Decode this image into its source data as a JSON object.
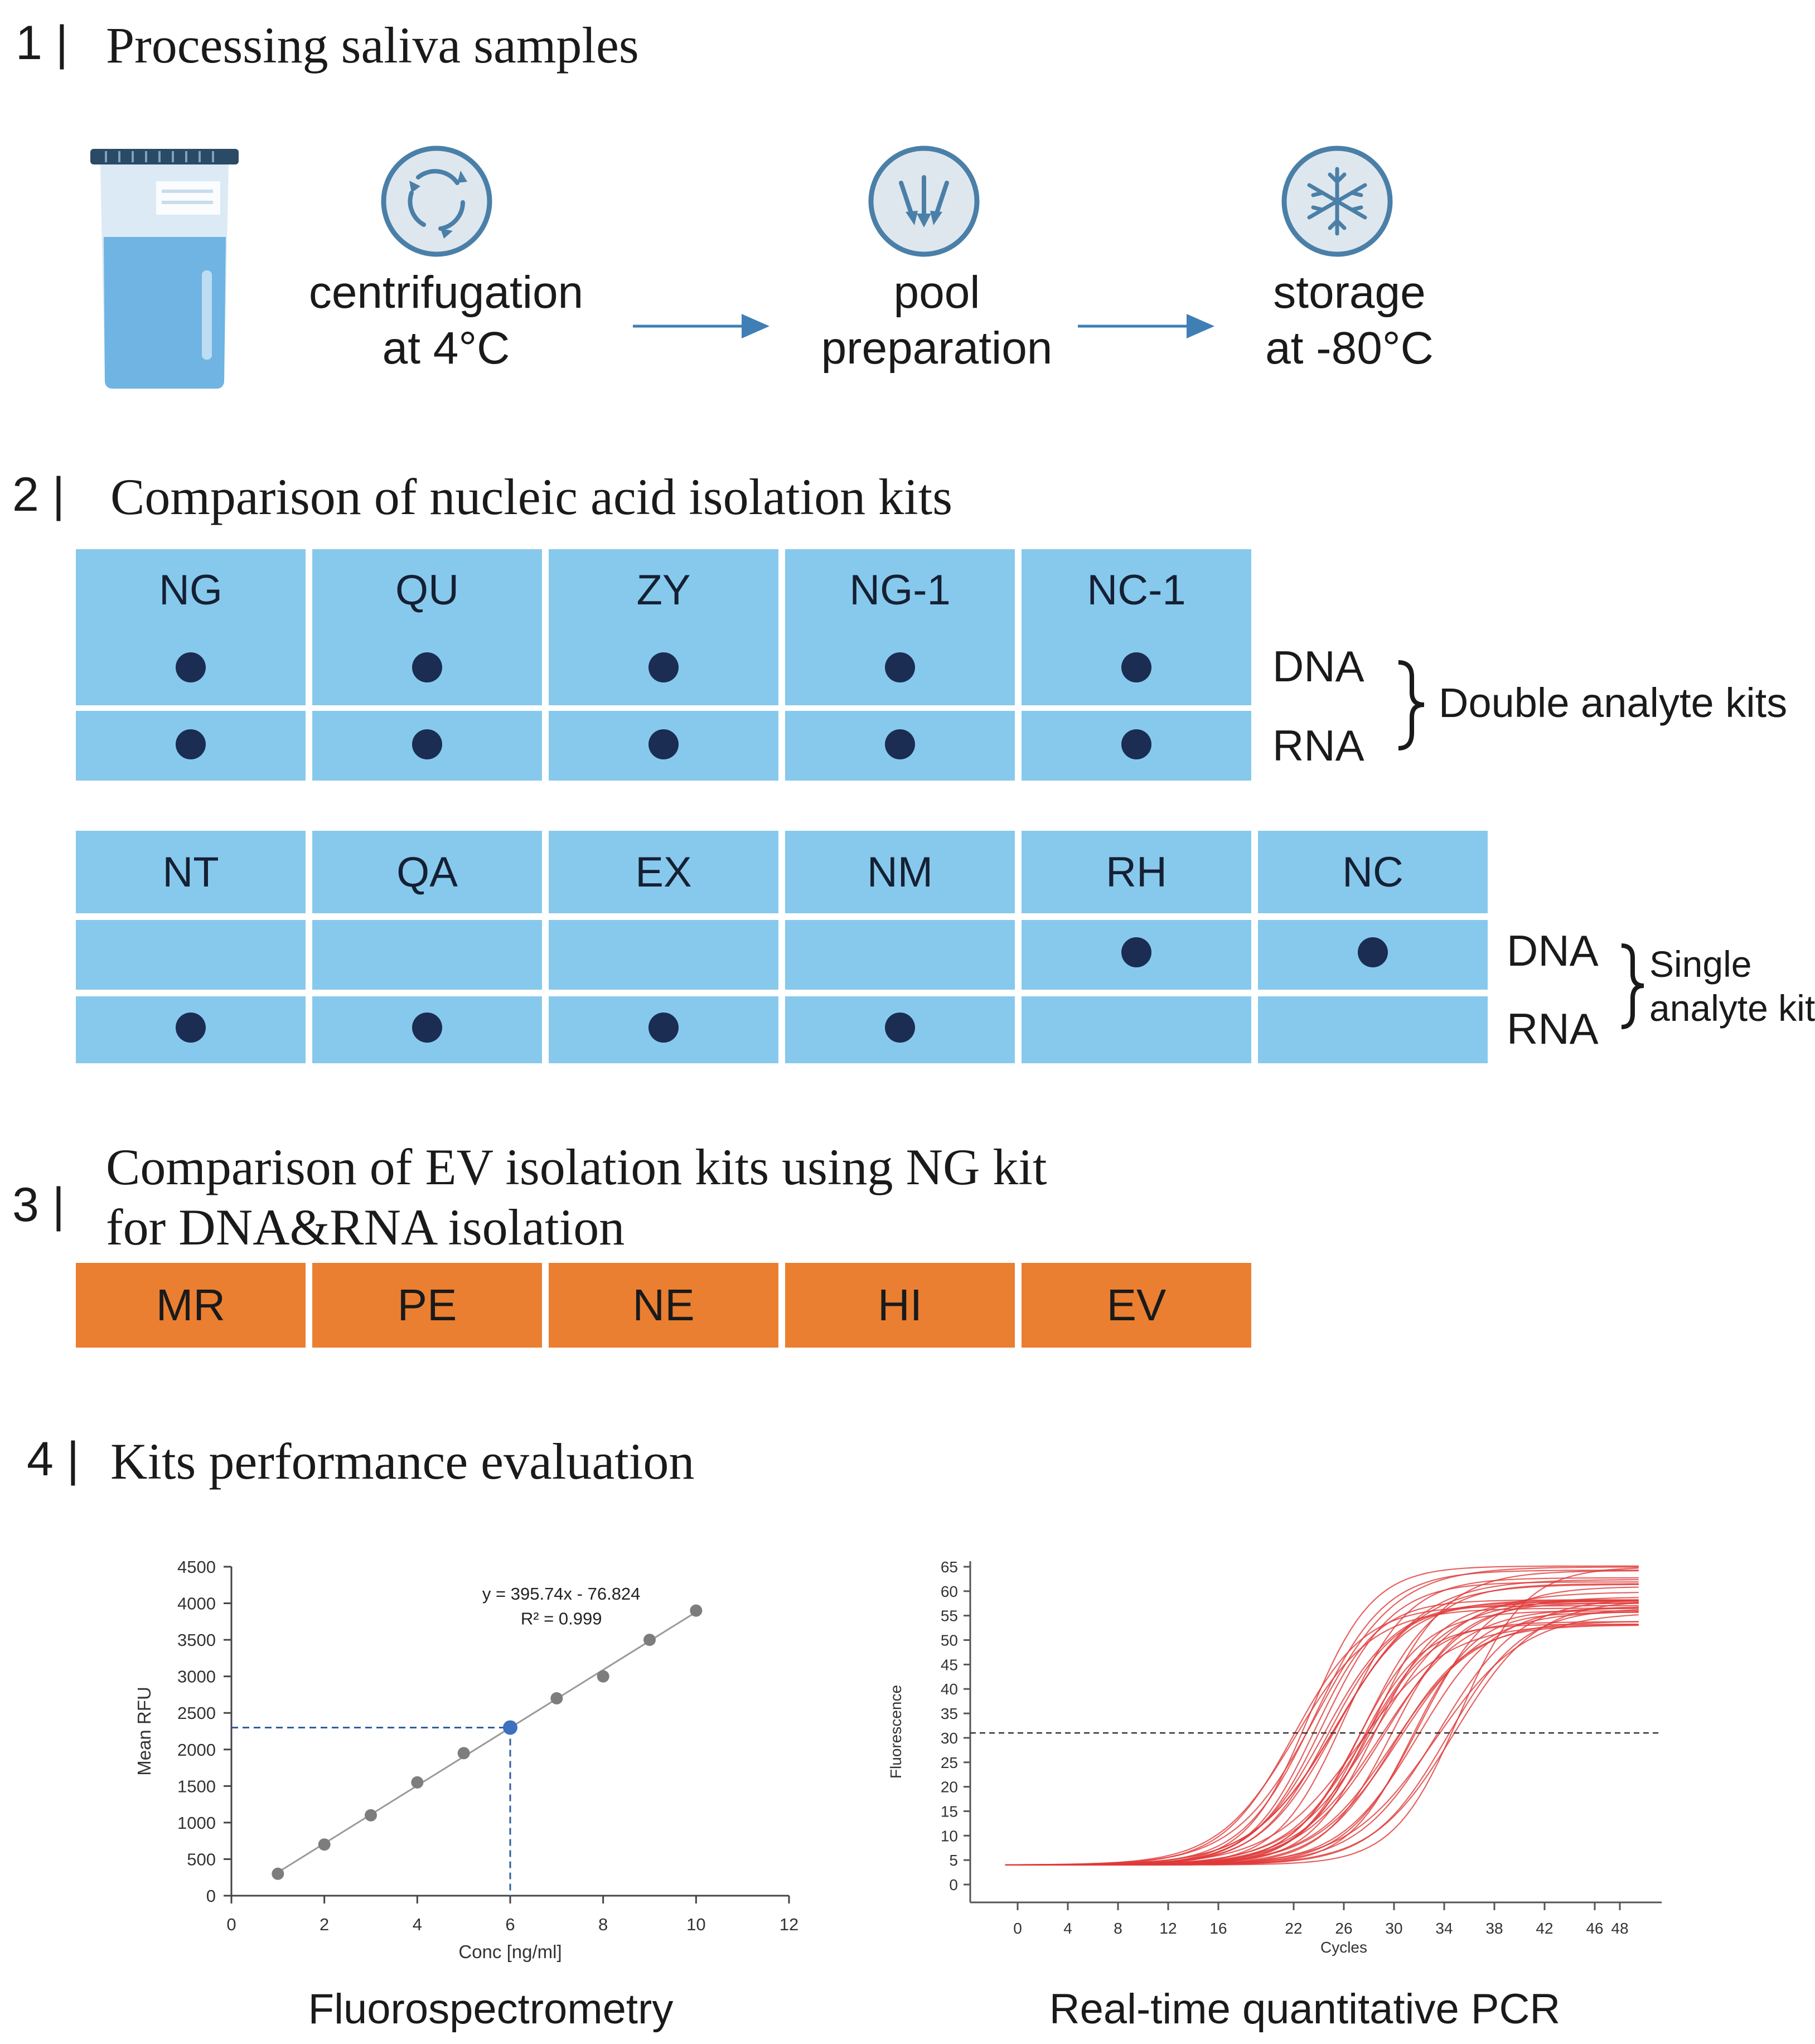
{
  "section1": {
    "number": "1 |",
    "title": "Processing saliva samples",
    "steps": [
      {
        "line1": "centrifugation",
        "line2": "at 4°C",
        "icon": "centrifuge-icon"
      },
      {
        "line1": "pool",
        "line2": "preparation",
        "icon": "pool-arrows-icon"
      },
      {
        "line1": "storage",
        "line2": "at -80°C",
        "icon": "snowflake-icon"
      }
    ]
  },
  "section2": {
    "number": "2 |",
    "title": "Comparison of nucleic acid isolation kits",
    "double_kits": [
      "NG",
      "QU",
      "ZY",
      "NG-1",
      "NC-1"
    ],
    "double_dna": [
      true,
      true,
      true,
      true,
      true
    ],
    "double_rna": [
      true,
      true,
      true,
      true,
      true
    ],
    "single_kits": [
      "NT",
      "QA",
      "EX",
      "NM",
      "RH",
      "NC"
    ],
    "single_dna": [
      false,
      false,
      false,
      false,
      true,
      true
    ],
    "single_rna": [
      true,
      true,
      true,
      true,
      false,
      false
    ],
    "dna_label": "DNA",
    "rna_label": "RNA",
    "double_group_label": "Double analyte kits",
    "single_group_line1": "Single",
    "single_group_line2": "analyte kits"
  },
  "section3": {
    "number": "3 |",
    "title_line1": "Comparison of EV isolation kits using NG kit",
    "title_line2": "for DNA&RNA isolation",
    "kits": [
      "MR",
      "PE",
      "NE",
      "HI",
      "EV"
    ]
  },
  "section4": {
    "number": "4 |",
    "title": "Kits performance evaluation",
    "caption_left": "Fluorospectrometry",
    "caption_right": "Real-time quantitative PCR"
  },
  "colors": {
    "kit_blue": "#87c9ec",
    "dot_navy": "#1b2d52",
    "ev_orange": "#ea7f31",
    "icon_blue": "#4a7fa8",
    "pcr_red": "#e03a3a",
    "arrow_blue": "#3f7fb5"
  },
  "chart_data": [
    {
      "type": "scatter",
      "title": "",
      "xlabel": "Conc [ng/ml]",
      "ylabel": "Mean RFU",
      "xlim": [
        0,
        12
      ],
      "ylim": [
        0,
        4500
      ],
      "xticks": [
        0,
        2,
        4,
        6,
        8,
        10,
        12
      ],
      "yticks": [
        0,
        500,
        1000,
        1500,
        2000,
        2500,
        3000,
        3500,
        4000,
        4500
      ],
      "x": [
        1,
        2,
        3,
        4,
        5,
        6,
        7,
        8,
        9,
        10
      ],
      "y": [
        300,
        700,
        1100,
        1550,
        1950,
        2300,
        2700,
        3000,
        3500,
        3900
      ],
      "trendline": {
        "slope": 395.74,
        "intercept": -76.824
      },
      "equation": "y = 395.74x - 76.824",
      "r2": "R² = 0.999",
      "highlight": {
        "x": 6,
        "y": 2300
      },
      "grid": false
    },
    {
      "type": "line",
      "title": "",
      "xlabel": "Cycles",
      "ylabel": "Fluorescence",
      "xticks": [
        "0",
        "4",
        "8",
        "12",
        "16",
        "22",
        "26",
        "30",
        "34",
        "38",
        "42",
        "46",
        "48"
      ],
      "yticks": [
        0,
        5,
        10,
        15,
        20,
        25,
        30,
        35,
        40,
        45,
        50,
        55,
        60,
        65
      ],
      "ylim": [
        0,
        65
      ],
      "threshold": 31,
      "baseline": 4,
      "curve_count": 36,
      "ct_range": [
        22,
        35
      ],
      "plateau_range": [
        52,
        66
      ],
      "grid": false
    }
  ]
}
